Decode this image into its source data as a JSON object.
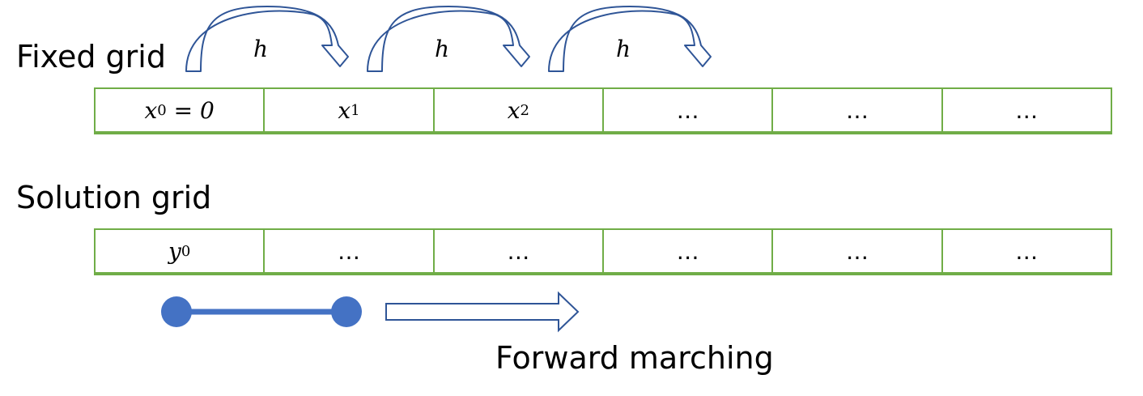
{
  "fixed_grid": {
    "title": "Fixed grid",
    "hop_label": "h",
    "hop_count": 3,
    "cells": [
      {
        "var": "x",
        "sub": "0",
        "suffix": " = 0"
      },
      {
        "var": "x",
        "sub": "1",
        "suffix": ""
      },
      {
        "var": "x",
        "sub": "2",
        "suffix": ""
      },
      {
        "text": "…"
      },
      {
        "text": "…"
      },
      {
        "text": "…"
      }
    ]
  },
  "solution_grid": {
    "title": "Solution grid",
    "cells": [
      {
        "var": "y",
        "sub": "0",
        "suffix": ""
      },
      {
        "text": "…"
      },
      {
        "text": "…"
      },
      {
        "text": "…"
      },
      {
        "text": "…"
      },
      {
        "text": "…"
      }
    ]
  },
  "marching": {
    "caption": "Forward marching"
  },
  "colors": {
    "grid_border": "#70ad47",
    "arrow_outline": "#2f5597",
    "stencil": "#4472c4"
  }
}
